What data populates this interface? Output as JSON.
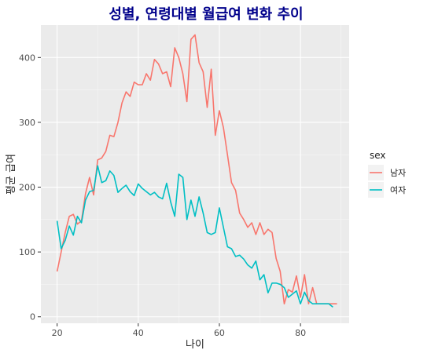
{
  "chart_data": {
    "type": "line",
    "title": "성별, 연령대별 월급여 변화 추이",
    "xlabel": "나이",
    "ylabel": "평균 급여",
    "xlim": [
      16,
      92
    ],
    "ylim": [
      -10,
      450
    ],
    "x_ticks": [
      20,
      40,
      60,
      80
    ],
    "y_ticks": [
      0,
      100,
      200,
      300,
      400
    ],
    "legend": {
      "title": "sex",
      "position": "right"
    },
    "series": [
      {
        "name": "남자",
        "color": "#f8766d",
        "points": [
          [
            20,
            70
          ],
          [
            21,
            100
          ],
          [
            22,
            130
          ],
          [
            23,
            155
          ],
          [
            24,
            158
          ],
          [
            25,
            143
          ],
          [
            26,
            148
          ],
          [
            27,
            190
          ],
          [
            28,
            215
          ],
          [
            29,
            188
          ],
          [
            30,
            242
          ],
          [
            31,
            245
          ],
          [
            32,
            255
          ],
          [
            33,
            280
          ],
          [
            34,
            278
          ],
          [
            35,
            300
          ],
          [
            36,
            330
          ],
          [
            37,
            347
          ],
          [
            38,
            340
          ],
          [
            39,
            362
          ],
          [
            40,
            358
          ],
          [
            41,
            358
          ],
          [
            42,
            375
          ],
          [
            43,
            365
          ],
          [
            44,
            397
          ],
          [
            45,
            390
          ],
          [
            46,
            375
          ],
          [
            47,
            378
          ],
          [
            48,
            355
          ],
          [
            49,
            415
          ],
          [
            50,
            400
          ],
          [
            51,
            375
          ],
          [
            52,
            332
          ],
          [
            53,
            428
          ],
          [
            54,
            435
          ],
          [
            55,
            392
          ],
          [
            56,
            378
          ],
          [
            57,
            323
          ],
          [
            58,
            382
          ],
          [
            59,
            280
          ],
          [
            60,
            318
          ],
          [
            61,
            292
          ],
          [
            62,
            250
          ],
          [
            63,
            207
          ],
          [
            64,
            195
          ],
          [
            65,
            160
          ],
          [
            66,
            150
          ],
          [
            67,
            138
          ],
          [
            68,
            145
          ],
          [
            69,
            127
          ],
          [
            70,
            145
          ],
          [
            71,
            127
          ],
          [
            72,
            135
          ],
          [
            73,
            130
          ],
          [
            74,
            90
          ],
          [
            75,
            70
          ],
          [
            76,
            20
          ],
          [
            77,
            42
          ],
          [
            78,
            38
          ],
          [
            79,
            63
          ],
          [
            80,
            30
          ],
          [
            81,
            65
          ],
          [
            82,
            20
          ],
          [
            83,
            45
          ],
          [
            84,
            20
          ],
          [
            85,
            20
          ],
          [
            86,
            20
          ],
          [
            87,
            20
          ],
          [
            88,
            20
          ],
          [
            89,
            20
          ]
        ]
      },
      {
        "name": "여자",
        "color": "#00bfc4",
        "points": [
          [
            20,
            148
          ],
          [
            21,
            105
          ],
          [
            22,
            118
          ],
          [
            23,
            140
          ],
          [
            24,
            126
          ],
          [
            25,
            155
          ],
          [
            26,
            145
          ],
          [
            27,
            180
          ],
          [
            28,
            193
          ],
          [
            29,
            195
          ],
          [
            30,
            233
          ],
          [
            31,
            207
          ],
          [
            32,
            210
          ],
          [
            33,
            225
          ],
          [
            34,
            218
          ],
          [
            35,
            192
          ],
          [
            36,
            198
          ],
          [
            37,
            203
          ],
          [
            38,
            193
          ],
          [
            39,
            187
          ],
          [
            40,
            205
          ],
          [
            41,
            198
          ],
          [
            42,
            193
          ],
          [
            43,
            188
          ],
          [
            44,
            192
          ],
          [
            45,
            185
          ],
          [
            46,
            182
          ],
          [
            47,
            206
          ],
          [
            48,
            177
          ],
          [
            49,
            155
          ],
          [
            50,
            220
          ],
          [
            51,
            215
          ],
          [
            52,
            150
          ],
          [
            53,
            180
          ],
          [
            54,
            155
          ],
          [
            55,
            185
          ],
          [
            56,
            160
          ],
          [
            57,
            130
          ],
          [
            58,
            127
          ],
          [
            59,
            130
          ],
          [
            60,
            168
          ],
          [
            61,
            138
          ],
          [
            62,
            108
          ],
          [
            63,
            105
          ],
          [
            64,
            93
          ],
          [
            65,
            95
          ],
          [
            66,
            89
          ],
          [
            67,
            80
          ],
          [
            68,
            75
          ],
          [
            69,
            86
          ],
          [
            70,
            57
          ],
          [
            71,
            65
          ],
          [
            72,
            37
          ],
          [
            73,
            52
          ],
          [
            74,
            52
          ],
          [
            75,
            50
          ],
          [
            76,
            45
          ],
          [
            77,
            30
          ],
          [
            78,
            35
          ],
          [
            79,
            40
          ],
          [
            80,
            20
          ],
          [
            81,
            38
          ],
          [
            82,
            25
          ],
          [
            83,
            20
          ],
          [
            84,
            20
          ],
          [
            85,
            20
          ],
          [
            86,
            20
          ],
          [
            87,
            20
          ],
          [
            88,
            15
          ]
        ]
      }
    ]
  }
}
